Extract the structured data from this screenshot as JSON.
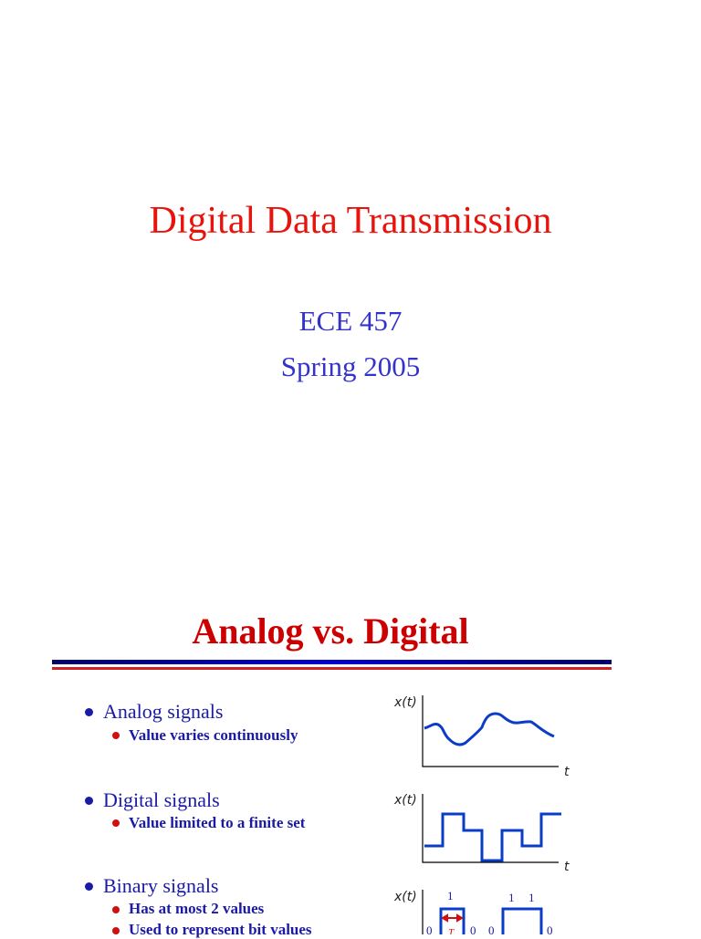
{
  "slide1": {
    "title": "Digital Data Transmission",
    "course": "ECE 457",
    "term": "Spring 2005"
  },
  "slide2": {
    "title": "Analog vs. Digital",
    "bullets": [
      {
        "label": "Analog signals",
        "sub": [
          "Value varies continuously"
        ]
      },
      {
        "label": "Digital signals",
        "sub": [
          "Value limited to a finite set"
        ]
      },
      {
        "label": "Binary signals",
        "sub": [
          "Has at most 2 values",
          "Used to represent bit values"
        ]
      }
    ],
    "graphs": {
      "ylabel": "x(t)",
      "xlabel": "t",
      "bits_top": [
        "1",
        "1",
        "1"
      ],
      "bits_bottom": [
        "0",
        "0",
        "0",
        "0"
      ],
      "period": "T"
    },
    "colors": {
      "title": "#cc0000",
      "text": "#1a1aa6",
      "signal": "#0a3cc8",
      "bullet_sub": "#d01010"
    }
  }
}
